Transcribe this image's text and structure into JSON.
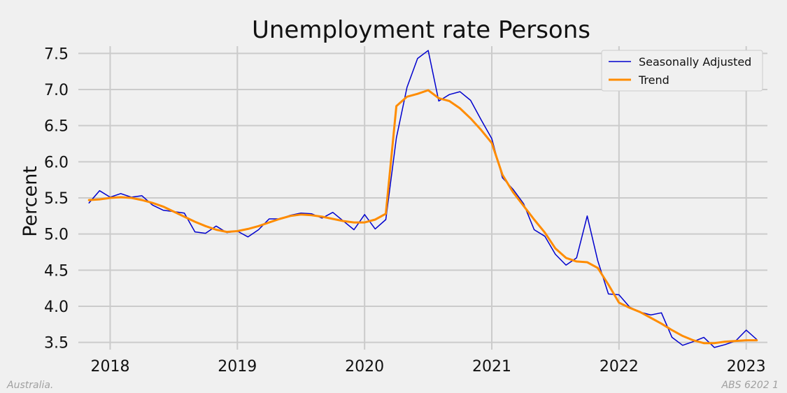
{
  "chart_data": {
    "type": "line",
    "title": "Unemployment rate Persons",
    "ylabel": "Percent",
    "xlabel": "",
    "ylim": [
      3.4,
      7.6
    ],
    "xlim": [
      "2017-10-01",
      "2023-03-01"
    ],
    "yticks": [
      3.5,
      4.0,
      4.5,
      5.0,
      5.5,
      6.0,
      6.5,
      7.0,
      7.5
    ],
    "xticks": [
      "2018",
      "2019",
      "2020",
      "2021",
      "2022",
      "2023"
    ],
    "grid": true,
    "legend_position": "top-right",
    "x": [
      "2017-11",
      "2017-12",
      "2018-01",
      "2018-02",
      "2018-03",
      "2018-04",
      "2018-05",
      "2018-06",
      "2018-07",
      "2018-08",
      "2018-09",
      "2018-10",
      "2018-11",
      "2018-12",
      "2019-01",
      "2019-02",
      "2019-03",
      "2019-04",
      "2019-05",
      "2019-06",
      "2019-07",
      "2019-08",
      "2019-09",
      "2019-10",
      "2019-11",
      "2019-12",
      "2020-01",
      "2020-02",
      "2020-03",
      "2020-04",
      "2020-05",
      "2020-06",
      "2020-07",
      "2020-08",
      "2020-09",
      "2020-10",
      "2020-11",
      "2020-12",
      "2021-01",
      "2021-02",
      "2021-03",
      "2021-04",
      "2021-05",
      "2021-06",
      "2021-07",
      "2021-08",
      "2021-09",
      "2021-10",
      "2021-11",
      "2021-12",
      "2022-01",
      "2022-02",
      "2022-03",
      "2022-04",
      "2022-05",
      "2022-06",
      "2022-07",
      "2022-08",
      "2022-09",
      "2022-10",
      "2022-11",
      "2022-12",
      "2023-01",
      "2023-02"
    ],
    "series": [
      {
        "name": "Seasonally Adjusted",
        "color": "#0000cd",
        "values": [
          5.43,
          5.6,
          5.51,
          5.56,
          5.51,
          5.53,
          5.4,
          5.33,
          5.31,
          5.29,
          5.03,
          5.01,
          5.11,
          5.02,
          5.04,
          4.96,
          5.06,
          5.21,
          5.21,
          5.26,
          5.29,
          5.28,
          5.22,
          5.3,
          5.18,
          5.06,
          5.27,
          5.07,
          5.2,
          6.33,
          7.03,
          7.43,
          7.54,
          6.84,
          6.93,
          6.97,
          6.85,
          6.58,
          6.32,
          5.78,
          5.62,
          5.42,
          5.06,
          4.97,
          4.72,
          4.57,
          4.67,
          5.25,
          4.63,
          4.17,
          4.16,
          3.99,
          3.92,
          3.88,
          3.91,
          3.57,
          3.46,
          3.51,
          3.57,
          3.43,
          3.47,
          3.52,
          3.67,
          3.54
        ]
      },
      {
        "name": "Trend",
        "color": "#ff8c00",
        "values": [
          5.47,
          5.48,
          5.5,
          5.51,
          5.5,
          5.47,
          5.43,
          5.38,
          5.31,
          5.24,
          5.17,
          5.11,
          5.06,
          5.03,
          5.04,
          5.07,
          5.11,
          5.16,
          5.21,
          5.25,
          5.27,
          5.26,
          5.24,
          5.21,
          5.18,
          5.16,
          5.16,
          5.2,
          5.28,
          6.77,
          6.9,
          6.94,
          6.99,
          6.88,
          6.84,
          6.74,
          6.6,
          6.44,
          6.26,
          5.82,
          5.58,
          5.39,
          5.2,
          5.02,
          4.8,
          4.67,
          4.62,
          4.61,
          4.53,
          4.3,
          4.05,
          3.98,
          3.92,
          3.84,
          3.76,
          3.67,
          3.59,
          3.53,
          3.49,
          3.49,
          3.51,
          3.52,
          3.53,
          3.53
        ]
      }
    ]
  },
  "footer": {
    "left": "Australia.",
    "right": "ABS 6202 1"
  }
}
